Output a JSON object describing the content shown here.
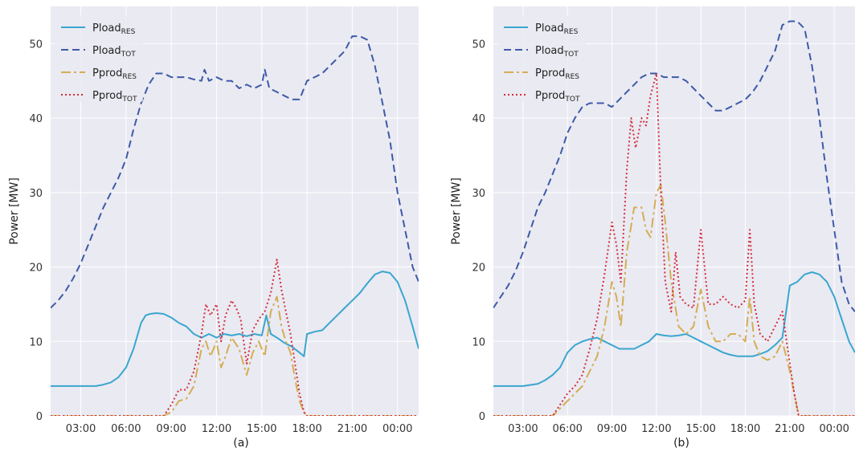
{
  "colors": {
    "background": "#eaeaf2",
    "grid": "#ffffff",
    "pload_res": "#3aa6cf",
    "pload_tot": "#3d5aa8",
    "pprod_res": "#d4ad55",
    "pprod_tot": "#d42d3c"
  },
  "chart_data": [
    {
      "type": "line",
      "title": "",
      "caption": "(a)",
      "xlabel": "",
      "ylabel": "Power [MW]",
      "ylim": [
        0,
        55
      ],
      "xlim": [
        1.0,
        25.4
      ],
      "grid": true,
      "legend_position": "top-left",
      "yticks": [
        0,
        10,
        20,
        30,
        40,
        50
      ],
      "ytick_labels": [
        "0",
        "10",
        "20",
        "30",
        "40",
        "50"
      ],
      "xticks": [
        3,
        6,
        9,
        12,
        15,
        18,
        21,
        24
      ],
      "xtick_labels": [
        "03:00",
        "06:00",
        "09:00",
        "12:00",
        "15:00",
        "18:00",
        "21:00",
        "00:00"
      ],
      "series": [
        {
          "name": "Pload",
          "sub": "RES",
          "style": "solid",
          "x": [
            1,
            2,
            3,
            4,
            4.5,
            5,
            5.5,
            6,
            6.5,
            7,
            7.3,
            7.6,
            8,
            8.5,
            9,
            9.5,
            10,
            10.5,
            11,
            11.5,
            12,
            12.5,
            13,
            13.5,
            14,
            14.5,
            15,
            15.3,
            15.6,
            16,
            16.5,
            17,
            17.5,
            17.8,
            18,
            18.5,
            19,
            19.5,
            20,
            20.5,
            21,
            21.5,
            22,
            22.5,
            23,
            23.5,
            24,
            24.5,
            25,
            25.4
          ],
          "y": [
            4,
            4,
            4,
            4,
            4.2,
            4.5,
            5.2,
            6.5,
            9,
            12.5,
            13.5,
            13.7,
            13.8,
            13.7,
            13.2,
            12.5,
            12,
            11,
            10.5,
            11,
            10.5,
            11,
            10.8,
            11,
            10.7,
            11,
            10.8,
            13.5,
            11,
            10.5,
            9.8,
            9.3,
            8.5,
            8,
            11,
            11.3,
            11.5,
            12.5,
            13.5,
            14.5,
            15.5,
            16.5,
            17.8,
            19,
            19.4,
            19.2,
            18,
            15.5,
            12,
            9
          ]
        },
        {
          "name": "Pload",
          "sub": "TOT",
          "style": "dashed",
          "x": [
            1,
            1.5,
            2,
            2.5,
            3,
            3.5,
            4,
            4.5,
            5,
            5.5,
            6,
            6.5,
            7,
            7.5,
            8,
            8.5,
            9,
            9.5,
            10,
            10.5,
            11,
            11.2,
            11.5,
            12,
            12.5,
            13,
            13.5,
            14,
            14.5,
            15,
            15.2,
            15.5,
            16,
            16.5,
            17,
            17.5,
            18,
            18.5,
            19,
            19.5,
            20,
            20.5,
            21,
            21.5,
            22,
            22.5,
            23,
            23.5,
            24,
            24.5,
            25,
            25.4
          ],
          "y": [
            14.5,
            15.5,
            16.8,
            18.5,
            20.5,
            23,
            25.5,
            28,
            30,
            32,
            34.5,
            38.5,
            42,
            44.5,
            46,
            46,
            45.5,
            45.5,
            45.5,
            45.2,
            45,
            46.5,
            45,
            45.5,
            45,
            45,
            44,
            44.5,
            44,
            44.5,
            46.5,
            44,
            43.5,
            43,
            42.5,
            42.5,
            45,
            45.5,
            46,
            47,
            48,
            49,
            51,
            51,
            50.5,
            47,
            42,
            37,
            30,
            25,
            20,
            18
          ]
        },
        {
          "name": "Pprod",
          "sub": "RES",
          "style": "dashdot",
          "x": [
            1,
            3,
            5,
            7,
            8.5,
            9,
            9.5,
            10,
            10.5,
            11,
            11.3,
            11.6,
            12,
            12.3,
            12.6,
            13,
            13.5,
            14,
            14.4,
            14.8,
            15.2,
            15.6,
            16,
            16.3,
            16.6,
            16.9,
            17.2,
            17.5,
            17.8,
            18,
            25.4
          ],
          "y": [
            0,
            0,
            0,
            0,
            0,
            0.5,
            2,
            2.3,
            4,
            9,
            10,
            8,
            10,
            6.5,
            8,
            10.5,
            9,
            5.5,
            8.5,
            10,
            8,
            14,
            16,
            12,
            10,
            8.5,
            5,
            2,
            0.5,
            0,
            0
          ]
        },
        {
          "name": "Pprod",
          "sub": "TOT",
          "style": "dotted",
          "x": [
            1,
            3,
            5,
            7,
            8.5,
            9,
            9.5,
            10,
            10.5,
            11,
            11.3,
            11.6,
            12,
            12.3,
            12.6,
            13,
            13.3,
            13.6,
            14,
            14.4,
            14.8,
            15.2,
            15.6,
            16,
            16.3,
            16.6,
            16.9,
            17.2,
            17.5,
            17.8,
            18,
            25.4
          ],
          "y": [
            0,
            0,
            0,
            0,
            0,
            1.5,
            3.5,
            3.5,
            6,
            11,
            15,
            13.5,
            15,
            10,
            13.5,
            15.5,
            14.5,
            13,
            7,
            11.5,
            13,
            14,
            16.5,
            21,
            17,
            14,
            11,
            7,
            3,
            0.5,
            0,
            0
          ]
        }
      ]
    },
    {
      "type": "line",
      "title": "",
      "caption": "(b)",
      "xlabel": "",
      "ylabel": "Power [MW]",
      "ylim": [
        0,
        55
      ],
      "xlim": [
        1.0,
        25.4
      ],
      "grid": true,
      "legend_position": "top-left",
      "yticks": [
        0,
        10,
        20,
        30,
        40,
        50
      ],
      "ytick_labels": [
        "0",
        "10",
        "20",
        "30",
        "40",
        "50"
      ],
      "xticks": [
        3,
        6,
        9,
        12,
        15,
        18,
        21,
        24
      ],
      "xtick_labels": [
        "03:00",
        "06:00",
        "09:00",
        "12:00",
        "15:00",
        "18:00",
        "21:00",
        "00:00"
      ],
      "series": [
        {
          "name": "Pload",
          "sub": "RES",
          "style": "solid",
          "x": [
            1,
            2,
            3,
            4,
            4.5,
            5,
            5.5,
            6,
            6.5,
            7,
            7.5,
            8,
            8.5,
            9,
            9.5,
            10,
            10.5,
            11,
            11.5,
            12,
            12.5,
            13,
            13.5,
            14,
            14.5,
            15,
            15.5,
            16,
            16.5,
            17,
            17.5,
            18,
            18.5,
            19,
            19.5,
            20,
            20.5,
            21,
            21.5,
            22,
            22.5,
            23,
            23.5,
            24,
            24.5,
            25,
            25.4
          ],
          "y": [
            4,
            4,
            4,
            4.3,
            4.8,
            5.5,
            6.5,
            8.5,
            9.5,
            10,
            10.3,
            10.5,
            10,
            9.5,
            9,
            9,
            9,
            9.5,
            10,
            11,
            10.8,
            10.7,
            10.8,
            11,
            10.5,
            10,
            9.5,
            9,
            8.5,
            8.2,
            8,
            8,
            8,
            8.3,
            8.7,
            9.5,
            10.5,
            17.5,
            18,
            19,
            19.3,
            19,
            18,
            16,
            13,
            10,
            8.5
          ]
        },
        {
          "name": "Pload",
          "sub": "TOT",
          "style": "dashed",
          "x": [
            1,
            1.5,
            2,
            2.5,
            3,
            3.5,
            4,
            4.5,
            5,
            5.5,
            6,
            6.5,
            7,
            7.5,
            8,
            8.5,
            9,
            9.5,
            10,
            10.5,
            11,
            11.5,
            12,
            12.5,
            13,
            13.5,
            14,
            14.5,
            15,
            15.5,
            16,
            16.5,
            17,
            17.5,
            18,
            18.5,
            19,
            19.5,
            20,
            20.5,
            21,
            21.5,
            22,
            22.5,
            23,
            23.5,
            24,
            24.5,
            25,
            25.4
          ],
          "y": [
            14.5,
            16,
            17.5,
            19.5,
            22,
            25,
            28,
            30,
            32.5,
            35,
            38,
            40,
            41.5,
            42,
            42,
            42,
            41.5,
            42.5,
            43.5,
            44.5,
            45.5,
            46,
            46,
            45.5,
            45.5,
            45.5,
            45,
            44,
            43,
            42,
            41,
            41,
            41.5,
            42,
            42.5,
            43.5,
            45,
            47,
            49,
            52.5,
            53,
            53,
            52,
            47,
            40,
            32,
            25,
            18,
            15,
            14
          ]
        },
        {
          "name": "Pprod",
          "sub": "RES",
          "style": "dashdot",
          "x": [
            1,
            3,
            5,
            6,
            6.5,
            7,
            7.5,
            8,
            8.5,
            9,
            9.3,
            9.6,
            10,
            10.5,
            11,
            11.3,
            11.6,
            12,
            12.3,
            12.6,
            13,
            13.5,
            14,
            14.5,
            15,
            15.5,
            16,
            16.5,
            17,
            17.5,
            18,
            18.3,
            18.6,
            19,
            19.5,
            20,
            20.5,
            21,
            21.3,
            21.6,
            25.4
          ],
          "y": [
            0,
            0,
            0,
            2,
            3,
            4,
            6,
            8,
            12,
            18,
            16,
            12,
            22,
            28,
            28,
            25,
            24,
            30,
            31,
            26,
            18,
            12,
            11,
            12,
            17,
            12,
            10,
            10,
            11,
            11,
            10,
            16,
            10,
            8,
            7.5,
            8,
            10,
            6,
            3,
            0,
            0
          ]
        },
        {
          "name": "Pprod",
          "sub": "TOT",
          "style": "dotted",
          "x": [
            1,
            3,
            5,
            6,
            6.5,
            7,
            7.5,
            8,
            8.5,
            9,
            9.3,
            9.6,
            10,
            10.3,
            10.6,
            11,
            11.3,
            11.6,
            12,
            12.3,
            12.6,
            13,
            13.3,
            13.6,
            14,
            14.5,
            15,
            15.5,
            16,
            16.5,
            17,
            17.5,
            18,
            18.3,
            18.6,
            19,
            19.5,
            20,
            20.5,
            21,
            21.3,
            21.6,
            25.4
          ],
          "y": [
            0,
            0,
            0,
            3,
            4,
            5.5,
            9,
            13,
            19,
            26,
            23,
            18,
            33,
            40,
            36,
            40,
            39,
            43,
            46,
            30,
            18,
            14,
            22,
            16,
            15,
            14.5,
            25,
            15,
            15,
            16,
            15,
            14.5,
            15.5,
            25,
            15,
            11,
            10,
            12,
            14,
            7,
            3,
            0,
            0
          ]
        }
      ]
    }
  ]
}
